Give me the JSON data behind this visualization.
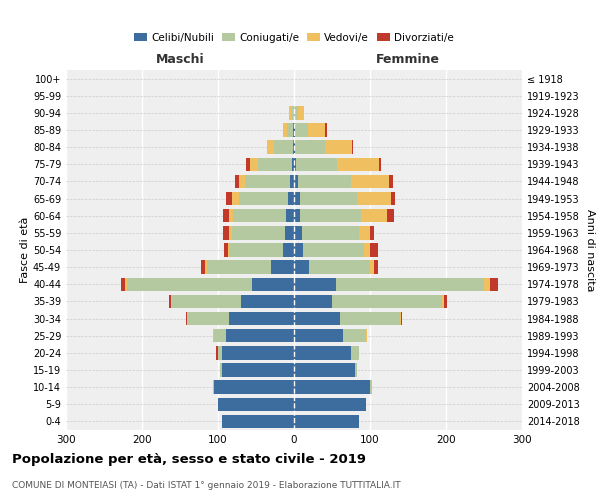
{
  "age_groups": [
    "0-4",
    "5-9",
    "10-14",
    "15-19",
    "20-24",
    "25-29",
    "30-34",
    "35-39",
    "40-44",
    "45-49",
    "50-54",
    "55-59",
    "60-64",
    "65-69",
    "70-74",
    "75-79",
    "80-84",
    "85-89",
    "90-94",
    "95-99",
    "100+"
  ],
  "birth_years": [
    "2014-2018",
    "2009-2013",
    "2004-2008",
    "1999-2003",
    "1994-1998",
    "1989-1993",
    "1984-1988",
    "1979-1983",
    "1974-1978",
    "1969-1973",
    "1964-1968",
    "1959-1963",
    "1954-1958",
    "1949-1953",
    "1944-1948",
    "1939-1943",
    "1934-1938",
    "1929-1933",
    "1924-1928",
    "1919-1923",
    "≤ 1918"
  ],
  "maschi": {
    "celibi": [
      95,
      100,
      105,
      95,
      95,
      90,
      85,
      70,
      55,
      30,
      15,
      12,
      10,
      8,
      5,
      3,
      1,
      1,
      0,
      0,
      0
    ],
    "coniugati": [
      0,
      0,
      2,
      2,
      5,
      15,
      55,
      90,
      165,
      85,
      70,
      70,
      70,
      65,
      60,
      45,
      25,
      8,
      3,
      0,
      0
    ],
    "vedovi": [
      0,
      0,
      0,
      0,
      0,
      1,
      1,
      2,
      2,
      2,
      2,
      3,
      5,
      8,
      8,
      10,
      10,
      5,
      3,
      0,
      0
    ],
    "divorziati": [
      0,
      0,
      0,
      0,
      2,
      0,
      1,
      3,
      5,
      5,
      5,
      8,
      8,
      8,
      5,
      5,
      0,
      0,
      0,
      0,
      0
    ]
  },
  "femmine": {
    "nubili": [
      85,
      95,
      100,
      80,
      75,
      65,
      60,
      50,
      55,
      20,
      12,
      10,
      8,
      8,
      5,
      2,
      1,
      1,
      0,
      0,
      0
    ],
    "coniugate": [
      0,
      0,
      2,
      3,
      10,
      30,
      80,
      145,
      195,
      80,
      80,
      75,
      80,
      75,
      70,
      55,
      40,
      18,
      5,
      0,
      0
    ],
    "vedove": [
      0,
      0,
      0,
      0,
      0,
      1,
      1,
      3,
      8,
      5,
      8,
      15,
      35,
      45,
      50,
      55,
      35,
      22,
      8,
      0,
      0
    ],
    "divorziate": [
      0,
      0,
      0,
      0,
      0,
      0,
      1,
      3,
      10,
      5,
      10,
      5,
      8,
      5,
      5,
      2,
      2,
      2,
      0,
      0,
      0
    ]
  },
  "colors": {
    "celibi": "#3d6d9e",
    "coniugati": "#b5c9a0",
    "vedovi": "#f0c060",
    "divorziati": "#c0392b"
  },
  "xlim": 300,
  "title": "Popolazione per età, sesso e stato civile - 2019",
  "subtitle": "COMUNE DI MONTEIASI (TA) - Dati ISTAT 1° gennaio 2019 - Elaborazione TUTTITALIA.IT",
  "ylabel_left": "Fasce di età",
  "ylabel_right": "Anni di nascita",
  "xlabel_maschi": "Maschi",
  "xlabel_femmine": "Femmine"
}
